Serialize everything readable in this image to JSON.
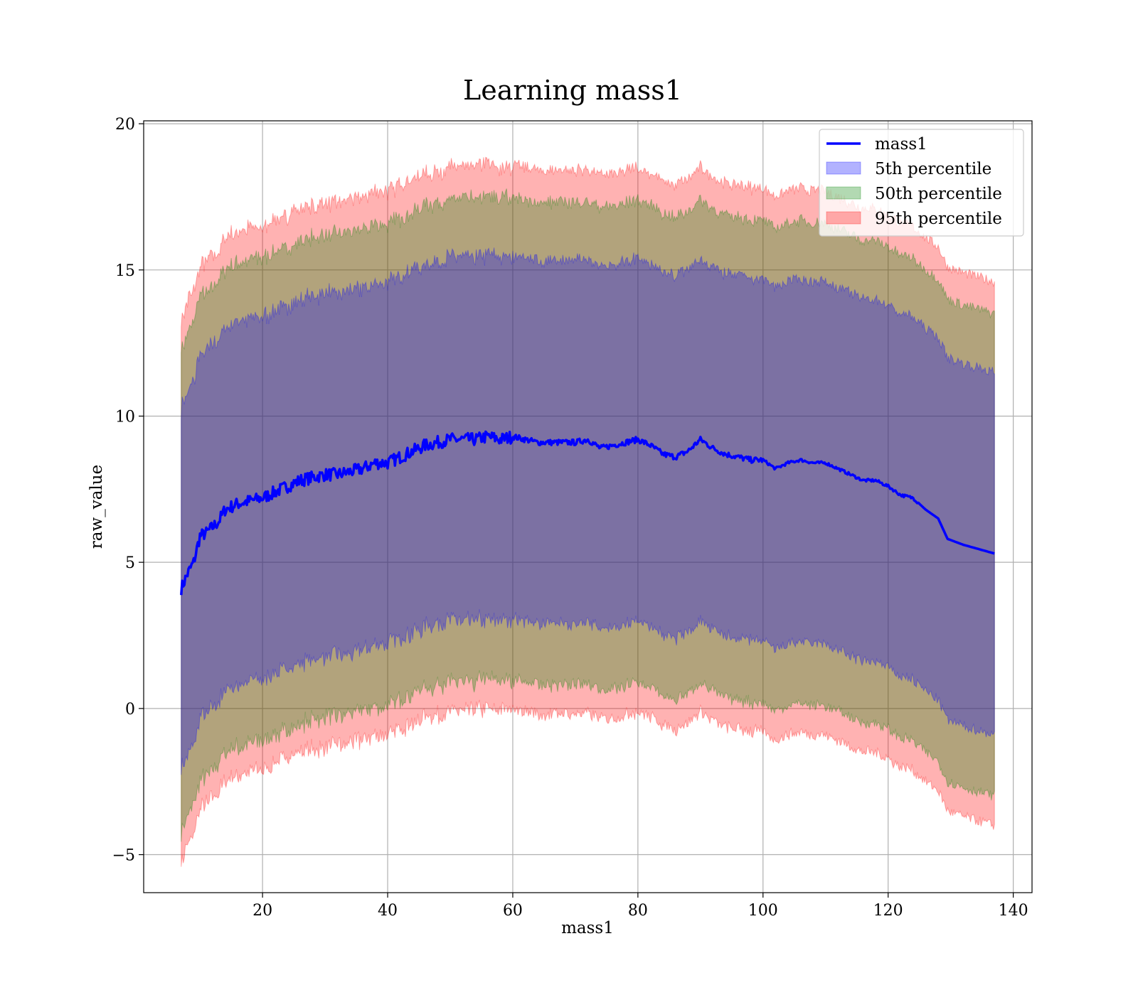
{
  "chart_data": {
    "type": "area",
    "title": "Learning mass1",
    "xlabel": "mass1",
    "ylabel": "raw_value",
    "xlim": [
      1,
      143
    ],
    "ylim": [
      -6.3,
      20.1
    ],
    "xticks": [
      20,
      40,
      60,
      80,
      100,
      120,
      140
    ],
    "xtick_labels": [
      "20",
      "40",
      "60",
      "80",
      "100",
      "120",
      "140"
    ],
    "yticks": [
      -5,
      0,
      5,
      10,
      15,
      20
    ],
    "ytick_labels": [
      "−5",
      "0",
      "5",
      "10",
      "15",
      "20"
    ],
    "grid": true,
    "legend_position": "top-right",
    "line": {
      "name": "mass1",
      "color": "#0000ff",
      "x": [
        7,
        8,
        9,
        10,
        11,
        12,
        13,
        14,
        15,
        16,
        18,
        20,
        22,
        24,
        26,
        28,
        30,
        32,
        34,
        36,
        38,
        40,
        42,
        44,
        46,
        48,
        50,
        52,
        54,
        56,
        58,
        60,
        62,
        64,
        66,
        68,
        70,
        72,
        74,
        76,
        78,
        80,
        82,
        84,
        86,
        88,
        90,
        92,
        94,
        96,
        98,
        100,
        102,
        104,
        106,
        108,
        110,
        112,
        114,
        116,
        118,
        120,
        122,
        124,
        126,
        128,
        129.5,
        132,
        137
      ],
      "values": [
        4.1,
        4.6,
        5.0,
        5.9,
        6.0,
        6.2,
        6.4,
        6.8,
        6.9,
        7.0,
        7.1,
        7.2,
        7.4,
        7.6,
        7.8,
        7.9,
        8.0,
        8.0,
        8.1,
        8.2,
        8.4,
        8.4,
        8.6,
        8.8,
        9.0,
        9.1,
        9.2,
        9.2,
        9.2,
        9.3,
        9.2,
        9.3,
        9.2,
        9.1,
        9.1,
        9.1,
        9.1,
        9.2,
        8.9,
        9.0,
        9.1,
        9.2,
        9.0,
        8.7,
        8.6,
        8.8,
        9.2,
        8.9,
        8.7,
        8.6,
        8.5,
        8.5,
        8.2,
        8.4,
        8.5,
        8.4,
        8.4,
        8.2,
        8.0,
        7.8,
        7.8,
        7.6,
        7.3,
        7.2,
        6.8,
        6.5,
        5.8,
        5.6,
        5.3
      ]
    },
    "bands": [
      {
        "name": "95th percentile",
        "color": "#ff0000",
        "upper_offset": 9.3,
        "lower_offset": -9.3,
        "opacity": 0.3
      },
      {
        "name": "50th percentile",
        "color": "#008000",
        "upper_offset": 8.2,
        "lower_offset": -8.3,
        "opacity": 0.3
      },
      {
        "name": "5th percentile",
        "color": "#0000ff",
        "upper_offset": 6.2,
        "lower_offset": -6.2,
        "opacity": 0.3
      }
    ],
    "legend": [
      "mass1",
      "5th percentile",
      "50th percentile",
      "95th percentile"
    ]
  }
}
